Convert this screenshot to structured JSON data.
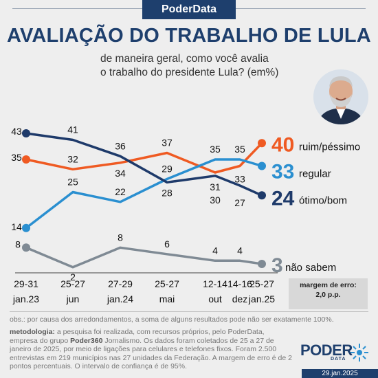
{
  "header": {
    "brand": "PoderData",
    "title": "AVALIAÇÃO DO TRABALHO DE LULA",
    "subtitle_line1": "de maneira geral, como você avalia",
    "subtitle_line2": "o trabalho do presidente Lula? (em%)"
  },
  "colors": {
    "ruim": "#ef5a22",
    "regular": "#2a8fd0",
    "otimo": "#1e3a6a",
    "naosabem": "#7f8a94",
    "brand": "#1e3f6d"
  },
  "chart_data": {
    "type": "line",
    "categories": [
      "29-31 jan.23",
      "25-27 jun",
      "27-29 jan.24",
      "25-27 mai",
      "12-14 out",
      "14-16 dez",
      "25-27 jan.25"
    ],
    "tick_labels": [
      {
        "line1": "29-31",
        "line2": "jan.23"
      },
      {
        "line1": "25-27",
        "line2": "jun"
      },
      {
        "line1": "27-29",
        "line2": "jan.24"
      },
      {
        "line1": "25-27",
        "line2": "mai"
      },
      {
        "line1": "12-14",
        "line2": "out"
      },
      {
        "line1": "14-16",
        "line2": "dez"
      },
      {
        "line1": "25-27",
        "line2": "jan.25"
      }
    ],
    "series": [
      {
        "name": "ruim/péssimo",
        "key": "ruim",
        "values": [
          35,
          32,
          34,
          37,
          31,
          33,
          40
        ],
        "final": "40"
      },
      {
        "name": "regular",
        "key": "regular",
        "values": [
          14,
          25,
          22,
          29,
          35,
          35,
          33
        ],
        "final": "33"
      },
      {
        "name": "ótimo/bom",
        "key": "otimo",
        "values": [
          43,
          41,
          36,
          28,
          30,
          27,
          24
        ],
        "final": "24"
      },
      {
        "name": "não sabem",
        "key": "naosabem",
        "values": [
          8,
          2,
          8,
          6,
          4,
          4,
          3
        ],
        "final": "3"
      }
    ],
    "data_labels": [
      {
        "series": "ruim",
        "index": 0,
        "text": "35"
      },
      {
        "series": "ruim",
        "index": 1,
        "text": "32"
      },
      {
        "series": "ruim",
        "index": 2,
        "text": "34"
      },
      {
        "series": "ruim",
        "index": 3,
        "text": "37"
      },
      {
        "series": "ruim",
        "index": 4,
        "text": "31"
      },
      {
        "series": "ruim",
        "index": 5,
        "text": "33"
      },
      {
        "series": "regular",
        "index": 0,
        "text": "14"
      },
      {
        "series": "regular",
        "index": 1,
        "text": "25"
      },
      {
        "series": "regular",
        "index": 2,
        "text": "22"
      },
      {
        "series": "regular",
        "index": 3,
        "text": "29"
      },
      {
        "series": "regular",
        "index": 4,
        "text": "35"
      },
      {
        "series": "regular",
        "index": 5,
        "text": "35"
      },
      {
        "series": "otimo",
        "index": 0,
        "text": "43"
      },
      {
        "series": "otimo",
        "index": 1,
        "text": "41"
      },
      {
        "series": "otimo",
        "index": 2,
        "text": "36"
      },
      {
        "series": "otimo",
        "index": 3,
        "text": "28"
      },
      {
        "series": "otimo",
        "index": 4,
        "text": "30"
      },
      {
        "series": "otimo",
        "index": 5,
        "text": "27"
      },
      {
        "series": "naosabem",
        "index": 0,
        "text": "8"
      },
      {
        "series": "naosabem",
        "index": 1,
        "text": "2"
      },
      {
        "series": "naosabem",
        "index": 2,
        "text": "8"
      },
      {
        "series": "naosabem",
        "index": 3,
        "text": "6"
      },
      {
        "series": "naosabem",
        "index": 4,
        "text": "4"
      },
      {
        "series": "naosabem",
        "index": 5,
        "text": "4"
      }
    ],
    "title": "AVALIAÇÃO DO TRABALHO DE LULA",
    "xlabel": "",
    "ylabel": "",
    "grid": false,
    "legend": "right, inline at line ends"
  },
  "margin_of_error": {
    "label": "margem de erro:",
    "value": "2,0 p.p."
  },
  "footer": {
    "obs": "obs.: por causa dos arredondamentos, a soma de alguns resultados pode não ser exatamente 100%.",
    "method_label": "metodologia:",
    "method_text_1": " a pesquisa foi realizada, com recursos próprios, pelo PoderData, empresa do grupo ",
    "method_bold": "Poder360",
    "method_text_2": " Jornalismo. Os dados foram coletados de 25 a 27 de janeiro de 2025, por meio de ligações para celulares e telefones fixos. Foram 2.500 entrevistas em 219 municípios nas 27 unidades da Federação. A margem de erro é de 2 pontos percentuais. O intervalo de confiança é de 95%.",
    "logo_text": "PODER",
    "logo_sub": "DATA",
    "date": "29.jan.2025"
  }
}
